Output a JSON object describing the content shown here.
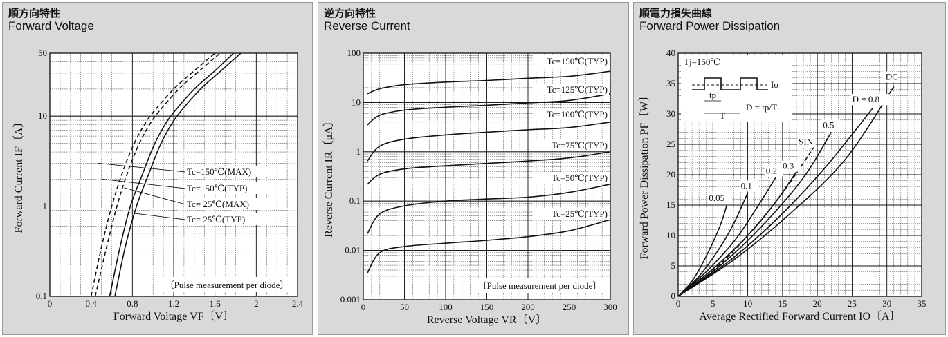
{
  "panels": [
    {
      "title_jp": "順方向特性",
      "title_en": "Forward Voltage"
    },
    {
      "title_jp": "逆方向特性",
      "title_en": "Reverse Current"
    },
    {
      "title_jp": "順電力損失曲線",
      "title_en": "Forward Power Dissipation"
    }
  ],
  "chart_data": [
    {
      "type": "line",
      "title": "Forward Voltage",
      "xlabel": "Forward Voltage  VF〔V〕",
      "ylabel": "Forward Current  IF〔A〕",
      "xlim": [
        0,
        2.4
      ],
      "ylim": [
        0.1,
        50
      ],
      "yscale": "log",
      "grid": true,
      "xticks": [
        "0",
        "0.4",
        "0.8",
        "1.2",
        "1.6",
        "2",
        "2.4"
      ],
      "yticks": [
        "0.1",
        "1",
        "10",
        "50"
      ],
      "note": "〔Pulse measurement per diode〕",
      "series": [
        {
          "name": "Tc=150℃(MAX)",
          "style": "dashed",
          "x": [
            0.4,
            0.5,
            0.6,
            0.7,
            0.8,
            0.9,
            1.0,
            1.2,
            1.4,
            1.6
          ],
          "y": [
            0.1,
            0.35,
            1.0,
            2.3,
            4.5,
            7.5,
            11,
            20,
            32,
            50
          ]
        },
        {
          "name": "Tc=150℃(TYP)",
          "style": "dashed",
          "x": [
            0.44,
            0.55,
            0.65,
            0.75,
            0.85,
            0.95,
            1.05,
            1.25,
            1.45,
            1.65
          ],
          "y": [
            0.1,
            0.35,
            1.0,
            2.3,
            4.5,
            7.5,
            11,
            20,
            32,
            50
          ]
        },
        {
          "name": "Tc= 25℃(MAX)",
          "style": "solid",
          "x": [
            0.58,
            0.68,
            0.78,
            0.9,
            1.0,
            1.1,
            1.2,
            1.4,
            1.6,
            1.78
          ],
          "y": [
            0.1,
            0.35,
            1.0,
            2.3,
            4.5,
            7.5,
            11,
            20,
            32,
            50
          ]
        },
        {
          "name": "Tc= 25℃(TYP)",
          "style": "solid",
          "x": [
            0.63,
            0.73,
            0.84,
            0.96,
            1.06,
            1.16,
            1.26,
            1.46,
            1.66,
            1.85
          ],
          "y": [
            0.1,
            0.35,
            1.0,
            2.3,
            4.5,
            7.5,
            11,
            20,
            32,
            50
          ]
        }
      ]
    },
    {
      "type": "line",
      "title": "Reverse Current",
      "xlabel": "Reverse Voltage  VR〔V〕",
      "ylabel": "Reverse Current  IR〔μA〕",
      "xlim": [
        0,
        300
      ],
      "ylim": [
        0.001,
        100
      ],
      "yscale": "log",
      "grid": true,
      "xticks": [
        "0",
        "50",
        "100",
        "150",
        "200",
        "250",
        "300"
      ],
      "yticks": [
        "0.001",
        "0.01",
        "0.1",
        "1",
        "10",
        "100"
      ],
      "note": "〔Pulse measurement per diode〕",
      "series": [
        {
          "name": "Tc=150℃(TYP)",
          "x": [
            5,
            20,
            50,
            100,
            150,
            200,
            250,
            300
          ],
          "y": [
            15,
            19,
            23,
            26,
            28,
            31,
            34,
            43
          ]
        },
        {
          "name": "Tc=125℃(TYP)",
          "x": [
            5,
            20,
            50,
            100,
            150,
            200,
            250,
            300
          ],
          "y": [
            3.5,
            5.5,
            7.0,
            8.0,
            8.8,
            9.8,
            11,
            15
          ]
        },
        {
          "name": "Tc=100℃(TYP)",
          "x": [
            5,
            20,
            50,
            100,
            150,
            200,
            250,
            300
          ],
          "y": [
            0.65,
            1.3,
            1.8,
            2.2,
            2.5,
            2.8,
            3.1,
            4.0
          ]
        },
        {
          "name": "Tc=75℃(TYP)",
          "x": [
            5,
            20,
            50,
            100,
            150,
            200,
            250,
            300
          ],
          "y": [
            0.22,
            0.35,
            0.45,
            0.52,
            0.58,
            0.65,
            0.75,
            1.0
          ]
        },
        {
          "name": "Tc=50℃(TYP)",
          "x": [
            5,
            20,
            50,
            100,
            150,
            200,
            250,
            300
          ],
          "y": [
            0.022,
            0.055,
            0.08,
            0.1,
            0.11,
            0.12,
            0.15,
            0.22
          ]
        },
        {
          "name": "Tc=25℃(TYP)",
          "x": [
            5,
            20,
            50,
            100,
            150,
            200,
            250,
            300
          ],
          "y": [
            0.0035,
            0.009,
            0.012,
            0.014,
            0.016,
            0.019,
            0.025,
            0.042
          ]
        }
      ]
    },
    {
      "type": "line",
      "title": "Forward Power Dissipation",
      "xlabel": "Average Rectified Forward Current  IO〔A〕",
      "ylabel": "Forward Power Dissipation  PF〔W〕",
      "xlim": [
        0,
        35
      ],
      "ylim": [
        0,
        40
      ],
      "grid": true,
      "xticks": [
        "0",
        "5",
        "10",
        "15",
        "20",
        "25",
        "30",
        "35"
      ],
      "yticks": [
        "0",
        "5",
        "10",
        "15",
        "20",
        "25",
        "30",
        "35",
        "40"
      ],
      "inset": {
        "tj": "Tj=150℃",
        "io": "Io",
        "tp": "tp",
        "T": "T",
        "formula": "D = tp/T"
      },
      "series": [
        {
          "name": "0.05",
          "style": "solid",
          "x": [
            0,
            2,
            4,
            6,
            7
          ],
          "y": [
            0,
            2.5,
            6.5,
            11.5,
            15
          ]
        },
        {
          "name": "0.1",
          "style": "solid",
          "x": [
            0,
            3,
            6,
            8,
            10
          ],
          "y": [
            0,
            3.3,
            8,
            12,
            17
          ]
        },
        {
          "name": "0.2",
          "style": "solid",
          "x": [
            0,
            4,
            8,
            11,
            14
          ],
          "y": [
            0,
            4,
            9,
            14,
            19.5
          ]
        },
        {
          "name": "0.3",
          "style": "solid",
          "x": [
            0,
            5,
            10,
            14,
            17
          ],
          "y": [
            0,
            4.5,
            10,
            15.5,
            20.5
          ]
        },
        {
          "name": "SIN",
          "style": "dashed",
          "x": [
            0,
            5,
            10,
            15,
            19.5
          ],
          "y": [
            0,
            4.2,
            10,
            17,
            24.5
          ]
        },
        {
          "name": "0.5",
          "style": "solid",
          "x": [
            0,
            6,
            12,
            18,
            22
          ],
          "y": [
            0,
            5,
            11.5,
            19.5,
            27
          ]
        },
        {
          "name": "D = 0.8",
          "style": "solid",
          "x": [
            0,
            7,
            14,
            21,
            28
          ],
          "y": [
            0,
            5.5,
            12.5,
            21,
            31
          ]
        },
        {
          "name": "DC",
          "style": "solid",
          "x": [
            0,
            8,
            16,
            24,
            31
          ],
          "y": [
            0,
            6,
            13.5,
            22.5,
            34.5
          ]
        }
      ]
    }
  ]
}
